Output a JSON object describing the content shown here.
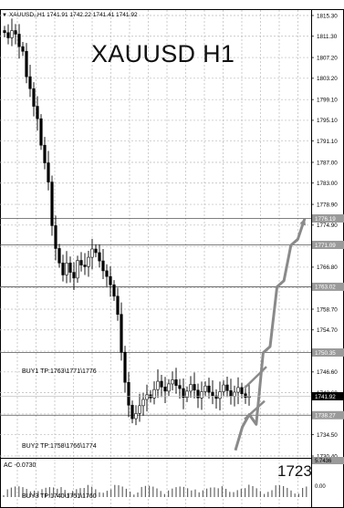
{
  "header": {
    "symbol_line": "XAUUSD₁,H1  1741.91 1742.22 1741.41 1741.92",
    "title": "XAUUSD H1"
  },
  "indicator": {
    "label": "AC -0.0730",
    "scale_top": "5.7436",
    "scale_mid": "0.00"
  },
  "level_labels": {
    "buy1": "BUY1 TP:1763\\1771\\1776",
    "buy2": "BUY2 TP:1758\\1766\\1774",
    "buy3": "BUY3 TP:1740\\1751\\1760"
  },
  "annotation": "1723",
  "colors": {
    "background": "#ffffff",
    "grid": "#b9b9b9",
    "candle": "#000000",
    "arrow": "#8a8a8a",
    "hline": "#555555",
    "price_tag_bg": "#000000",
    "level_tag_bg": "#9a9a9a"
  },
  "chart_data": {
    "type": "candlestick",
    "title": "XAUUSD H1",
    "symbol": "XAUUSD",
    "timeframe": "H1",
    "ylim": [
      1730.4,
      1815.3
    ],
    "y_ticks": [
      1815.3,
      1811.3,
      1807.2,
      1803.2,
      1799.1,
      1795.1,
      1791.1,
      1787.0,
      1783.0,
      1778.9,
      1774.9,
      1770.8,
      1766.8,
      1762.8,
      1758.7,
      1754.7,
      1750.6,
      1746.6,
      1742.6,
      1738.5,
      1734.5,
      1730.4
    ],
    "y_tick_labels": [
      "1815.30",
      "1811.30",
      "1807.20",
      "1803.20",
      "1799.10",
      "1795.10",
      "1791.10",
      "1787.00",
      "1783.00",
      "1778.90",
      "1774.90",
      "1770.80",
      "1766.80",
      "1762.80",
      "1758.70",
      "1754.70",
      "1750.60",
      "1746.60",
      "1742.60",
      "1738.50",
      "1734.50",
      "1730.40"
    ],
    "current_price": 1741.92,
    "current_price_label": "1741.92",
    "level_lines": [
      {
        "value": 1776.19,
        "label": "1776.19"
      },
      {
        "value": 1771.09,
        "label": "1771.09"
      },
      {
        "value": 1763.02,
        "label": "1763.02"
      },
      {
        "value": 1750.35,
        "label": "1750.35"
      },
      {
        "value": 1738.27,
        "label": "1738.27"
      }
    ],
    "closes": [
      1812.0,
      1811.0,
      1812.4,
      1811.7,
      1809.3,
      1808.4,
      1803.5,
      1801.2,
      1797.8,
      1795.4,
      1790.3,
      1786.9,
      1783.2,
      1774.8,
      1770.4,
      1767.6,
      1765.3,
      1767.6,
      1765.8,
      1764.7,
      1768.1,
      1767.2,
      1766.9,
      1768.7,
      1770.3,
      1769.6,
      1768.0,
      1766.1,
      1765.0,
      1763.4,
      1761.2,
      1757.7,
      1750.4,
      1744.6,
      1740.2,
      1737.6,
      1738.6,
      1740.1,
      1741.3,
      1742.2,
      1741.6,
      1743.2,
      1744.8,
      1743.7,
      1742.9,
      1744.3,
      1745.1,
      1744.0,
      1743.4,
      1741.7,
      1742.9,
      1744.2,
      1743.1,
      1741.6,
      1742.8,
      1743.9,
      1742.7,
      1742.0,
      1741.5,
      1742.8,
      1744.1,
      1743.0,
      1741.9,
      1742.7,
      1743.6,
      1742.4,
      1741.7,
      1741.9
    ],
    "projected_path": [
      {
        "step": 0,
        "value": 1731.5
      },
      {
        "step": 1,
        "value": 1736.0
      },
      {
        "step": 2,
        "value": 1738.4
      },
      {
        "step": 3,
        "value": 1736.5
      },
      {
        "step": 4,
        "value": 1750.3
      },
      {
        "step": 5,
        "value": 1751.5
      },
      {
        "step": 6,
        "value": 1763.0
      },
      {
        "step": 7,
        "value": 1764.2
      },
      {
        "step": 8,
        "value": 1771.0
      },
      {
        "step": 9,
        "value": 1772.2
      },
      {
        "step": 10,
        "value": 1776.2
      }
    ],
    "grid": true,
    "indicator": {
      "name": "AC",
      "value": -0.073,
      "ylim": [
        0.0,
        5.7436
      ]
    }
  }
}
